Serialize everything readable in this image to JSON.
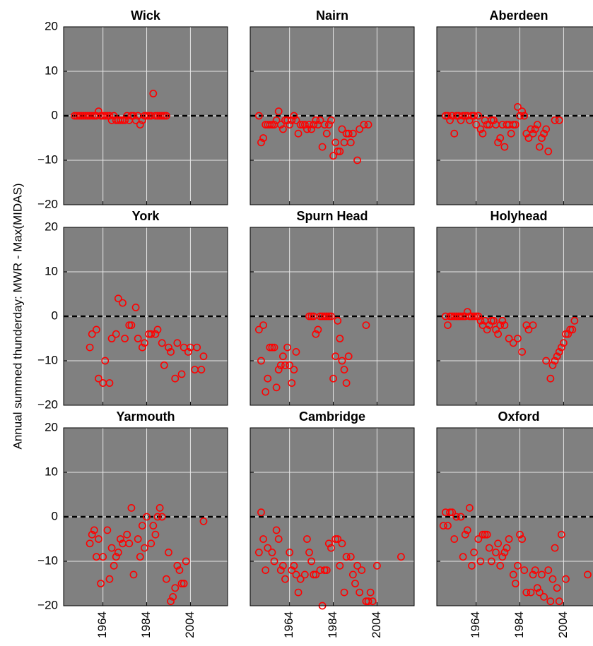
{
  "ylabel": "Annual summed thunderday: MWR - Max(MIDAS)",
  "chart_data": [
    {
      "type": "scatter",
      "title": "Wick",
      "color": "#ff0000",
      "background": "#808080",
      "grid": true,
      "hline": 0,
      "xlim": [
        1946,
        2021
      ],
      "ylim": [
        -20,
        20
      ],
      "xticks": [
        1964,
        1984,
        2004
      ],
      "yticks": [
        {
          "value": -20,
          "label": "−20"
        },
        {
          "value": -10,
          "label": "−10"
        },
        0,
        10,
        20
      ],
      "x": [
        1951,
        1952,
        1953,
        1954,
        1955,
        1956,
        1957,
        1958,
        1959,
        1960,
        1961,
        1962,
        1963,
        1964,
        1965,
        1966,
        1967,
        1968,
        1969,
        1970,
        1971,
        1972,
        1973,
        1974,
        1975,
        1976,
        1977,
        1978,
        1979,
        1980,
        1981,
        1982,
        1983,
        1984,
        1985,
        1986,
        1987,
        1988,
        1989,
        1990,
        1991,
        1992,
        1993
      ],
      "values": [
        0,
        0,
        0,
        0,
        0,
        0,
        0,
        0,
        0,
        0,
        0,
        1,
        0,
        0,
        0,
        0,
        0,
        -1,
        0,
        -1,
        -1,
        -1,
        -1,
        -1,
        0,
        -1,
        0,
        0,
        -1,
        0,
        -2,
        -1,
        0,
        0,
        0,
        0,
        5,
        0,
        0,
        0,
        0,
        0,
        0
      ]
    },
    {
      "type": "scatter",
      "title": "Nairn",
      "color": "#ff0000",
      "background": "#808080",
      "grid": true,
      "hline": 0,
      "xlim": [
        1946,
        2021
      ],
      "ylim": [
        -20,
        20
      ],
      "xticks": [
        1964,
        1984,
        2004
      ],
      "yticks": [
        {
          "value": -20,
          "label": "−20"
        },
        {
          "value": -10,
          "label": "−10"
        },
        0,
        10,
        20
      ],
      "x": [
        1950,
        1951,
        1952,
        1953,
        1954,
        1955,
        1956,
        1957,
        1958,
        1959,
        1960,
        1961,
        1962,
        1963,
        1964,
        1965,
        1966,
        1967,
        1968,
        1969,
        1970,
        1971,
        1972,
        1973,
        1974,
        1975,
        1976,
        1977,
        1978,
        1979,
        1980,
        1981,
        1982,
        1983,
        1984,
        1985,
        1986,
        1987,
        1988,
        1989,
        1990,
        1991,
        1992,
        1993,
        1995,
        1996,
        1998,
        2000
      ],
      "values": [
        0,
        -6,
        -5,
        -2,
        -2,
        -2,
        -2,
        -2,
        -1,
        1,
        -2,
        -3,
        -1,
        -1,
        -2,
        -1,
        0,
        -1,
        -4,
        -2,
        -2,
        -2,
        -3,
        -2,
        -3,
        -2,
        -1,
        -2,
        -1,
        -7,
        -2,
        -4,
        -2,
        -1,
        -9,
        -6,
        -8,
        -8,
        -3,
        -6,
        -4,
        -4,
        -6,
        -4,
        -10,
        -3,
        -2,
        -2
      ]
    },
    {
      "type": "scatter",
      "title": "Aberdeen",
      "color": "#ff0000",
      "background": "#808080",
      "grid": true,
      "hline": 0,
      "xlim": [
        1946,
        2021
      ],
      "ylim": [
        -20,
        20
      ],
      "xticks": [
        1964,
        1984,
        2004
      ],
      "yticks": [
        {
          "value": -20,
          "label": "−20"
        },
        {
          "value": -10,
          "label": "−10"
        },
        0,
        10,
        20
      ],
      "x": [
        1950,
        1951,
        1952,
        1953,
        1954,
        1955,
        1956,
        1957,
        1958,
        1959,
        1960,
        1961,
        1962,
        1963,
        1964,
        1965,
        1966,
        1967,
        1968,
        1969,
        1970,
        1971,
        1972,
        1973,
        1974,
        1975,
        1976,
        1977,
        1978,
        1979,
        1980,
        1981,
        1982,
        1983,
        1984,
        1985,
        1986,
        1987,
        1988,
        1989,
        1990,
        1991,
        1992,
        1993,
        1994,
        1995,
        1996,
        1997,
        2000,
        2002
      ],
      "values": [
        0,
        0,
        -1,
        0,
        -4,
        0,
        0,
        -1,
        0,
        0,
        0,
        -1,
        0,
        0,
        -2,
        0,
        -3,
        -4,
        -1,
        -2,
        -2,
        -1,
        -1,
        -2,
        -6,
        -5,
        -2,
        -7,
        -2,
        -2,
        -4,
        -2,
        -2,
        2,
        0,
        1,
        0,
        -4,
        -5,
        -3,
        -4,
        -3,
        -2,
        -7,
        -5,
        -4,
        -3,
        -8,
        -1,
        -1
      ]
    },
    {
      "type": "scatter",
      "title": "York",
      "color": "#ff0000",
      "background": "#808080",
      "grid": true,
      "hline": 0,
      "xlim": [
        1946,
        2021
      ],
      "ylim": [
        -20,
        20
      ],
      "xticks": [
        1964,
        1984,
        2004
      ],
      "yticks": [
        {
          "value": -20,
          "label": "−20"
        },
        {
          "value": -10,
          "label": "−10"
        },
        0,
        10,
        20
      ],
      "x": [
        1958,
        1959,
        1961,
        1962,
        1964,
        1965,
        1967,
        1968,
        1970,
        1971,
        1973,
        1974,
        1976,
        1977,
        1979,
        1980,
        1982,
        1983,
        1985,
        1986,
        1988,
        1989,
        1991,
        1992,
        1994,
        1995,
        1997,
        1998,
        2000,
        2001,
        2003,
        2004,
        2006,
        2007,
        2009,
        2010
      ],
      "values": [
        -7,
        -4,
        -3,
        -14,
        -15,
        -10,
        -15,
        -5,
        -4,
        4,
        3,
        -5,
        -2,
        -2,
        2,
        -5,
        -7,
        -6,
        -4,
        -4,
        -4,
        -3,
        -6,
        -11,
        -7,
        -8,
        -14,
        -6,
        -13,
        -7,
        -8,
        -7,
        -12,
        -7,
        -12,
        -9
      ]
    },
    {
      "type": "scatter",
      "title": "Spurn Head",
      "color": "#ff0000",
      "background": "#808080",
      "grid": true,
      "hline": 0,
      "xlim": [
        1946,
        2021
      ],
      "ylim": [
        -20,
        20
      ],
      "xticks": [
        1964,
        1984,
        2004
      ],
      "yticks": [
        {
          "value": -20,
          "label": "−20"
        },
        {
          "value": -10,
          "label": "−10"
        },
        0,
        10,
        20
      ],
      "x": [
        1950,
        1951,
        1952,
        1953,
        1954,
        1955,
        1956,
        1957,
        1958,
        1959,
        1960,
        1961,
        1962,
        1963,
        1964,
        1965,
        1966,
        1967,
        1973,
        1974,
        1975,
        1976,
        1977,
        1978,
        1979,
        1980,
        1981,
        1982,
        1983,
        1984,
        1985,
        1986,
        1987,
        1988,
        1989,
        1990,
        1991,
        1999
      ],
      "values": [
        -3,
        -10,
        -2,
        -17,
        -14,
        -7,
        -7,
        -7,
        -16,
        -12,
        -11,
        -9,
        -11,
        -7,
        -11,
        -15,
        -12,
        -8,
        0,
        0,
        0,
        -4,
        -3,
        0,
        0,
        0,
        0,
        0,
        0,
        -14,
        -9,
        -1,
        -5,
        -10,
        -12,
        -15,
        -9,
        -2
      ]
    },
    {
      "type": "scatter",
      "title": "Holyhead",
      "color": "#ff0000",
      "background": "#808080",
      "grid": true,
      "hline": 0,
      "xlim": [
        1946,
        2021
      ],
      "ylim": [
        -20,
        20
      ],
      "xticks": [
        1964,
        1984,
        2004
      ],
      "yticks": [
        {
          "value": -20,
          "label": "−20"
        },
        {
          "value": -10,
          "label": "−10"
        },
        0,
        10,
        20
      ],
      "x": [
        1950,
        1951,
        1952,
        1953,
        1954,
        1955,
        1956,
        1957,
        1958,
        1959,
        1960,
        1961,
        1962,
        1963,
        1964,
        1965,
        1966,
        1967,
        1968,
        1969,
        1970,
        1971,
        1972,
        1973,
        1974,
        1975,
        1976,
        1977,
        1979,
        1981,
        1983,
        1985,
        1987,
        1988,
        1990,
        1996,
        1998,
        1999,
        2000,
        2001,
        2002,
        2003,
        2004,
        2005,
        2006,
        2007,
        2008,
        2009
      ],
      "values": [
        0,
        -2,
        0,
        0,
        0,
        0,
        0,
        0,
        0,
        0,
        1,
        0,
        0,
        0,
        0,
        0,
        -1,
        -2,
        -1,
        -3,
        -2,
        -1,
        -1,
        -3,
        -4,
        -2,
        -1,
        -2,
        -5,
        -6,
        -5,
        -8,
        -2,
        -3,
        -2,
        -10,
        -14,
        -11,
        -10,
        -9,
        -8,
        -7,
        -6,
        -4,
        -4,
        -3,
        -3,
        -1
      ]
    },
    {
      "type": "scatter",
      "title": "Yarmouth",
      "color": "#ff0000",
      "background": "#808080",
      "grid": true,
      "hline": 0,
      "xlim": [
        1946,
        2021
      ],
      "ylim": [
        -20,
        20
      ],
      "xticks": [
        1964,
        1984,
        2004
      ],
      "yticks": [
        {
          "value": -20,
          "label": "−20"
        },
        {
          "value": -10,
          "label": "−10"
        },
        0,
        10,
        20
      ],
      "x": [
        1958,
        1959,
        1960,
        1961,
        1962,
        1963,
        1964,
        1966,
        1967,
        1968,
        1969,
        1970,
        1971,
        1972,
        1973,
        1975,
        1976,
        1977,
        1978,
        1980,
        1981,
        1982,
        1983,
        1984,
        1986,
        1987,
        1988,
        1989,
        1990,
        1991,
        1993,
        1994,
        1995,
        1996,
        1997,
        1998,
        1999,
        2000,
        2001,
        2002,
        2010
      ],
      "values": [
        -6,
        -4,
        -3,
        -9,
        -5,
        -15,
        -9,
        -3,
        -14,
        -7,
        -11,
        -9,
        -8,
        -5,
        -6,
        -4,
        -6,
        2,
        -13,
        -5,
        -9,
        -2,
        -7,
        0,
        -6,
        -2,
        -4,
        0,
        2,
        0,
        -14,
        -8,
        -19,
        -18,
        -16,
        -11,
        -12,
        -15,
        -15,
        -10,
        -1
      ]
    },
    {
      "type": "scatter",
      "title": "Cambridge",
      "color": "#ff0000",
      "background": "#808080",
      "grid": true,
      "hline": 0,
      "xlim": [
        1946,
        2021
      ],
      "ylim": [
        -20,
        20
      ],
      "xticks": [
        1964,
        1984,
        2004
      ],
      "yticks": [
        {
          "value": -20,
          "label": "−20"
        },
        {
          "value": -10,
          "label": "−10"
        },
        0,
        10,
        20
      ],
      "x": [
        1950,
        1951,
        1952,
        1953,
        1954,
        1956,
        1957,
        1958,
        1959,
        1960,
        1961,
        1962,
        1964,
        1965,
        1966,
        1967,
        1968,
        1969,
        1971,
        1972,
        1973,
        1974,
        1975,
        1976,
        1978,
        1979,
        1980,
        1981,
        1982,
        1983,
        1985,
        1986,
        1987,
        1988,
        1989,
        1990,
        1992,
        1993,
        1994,
        1995,
        1996,
        1997,
        1999,
        2000,
        2001,
        2002,
        2004,
        2015
      ],
      "values": [
        -8,
        1,
        -5,
        -12,
        -7,
        -8,
        -10,
        -3,
        -5,
        -12,
        -11,
        -14,
        -8,
        -12,
        -11,
        -13,
        -17,
        -14,
        -13,
        -5,
        -8,
        -10,
        -13,
        -13,
        -12,
        -20,
        -12,
        -12,
        -6,
        -7,
        -5,
        -5,
        -11,
        -6,
        -17,
        -9,
        -9,
        -13,
        -15,
        -11,
        -17,
        -12,
        -19,
        -19,
        -17,
        -19,
        -11,
        -9
      ]
    },
    {
      "type": "scatter",
      "title": "Oxford",
      "color": "#ff0000",
      "background": "#808080",
      "grid": true,
      "hline": 0,
      "xlim": [
        1946,
        2021
      ],
      "ylim": [
        -20,
        20
      ],
      "xticks": [
        1964,
        1984,
        2004
      ],
      "yticks": [
        {
          "value": -20,
          "label": "−20"
        },
        {
          "value": -10,
          "label": "−10"
        },
        0,
        10,
        20
      ],
      "x": [
        1949,
        1950,
        1951,
        1952,
        1953,
        1954,
        1955,
        1957,
        1958,
        1959,
        1960,
        1961,
        1962,
        1963,
        1965,
        1966,
        1967,
        1968,
        1969,
        1970,
        1971,
        1973,
        1974,
        1975,
        1976,
        1977,
        1978,
        1979,
        1981,
        1982,
        1983,
        1984,
        1985,
        1986,
        1987,
        1989,
        1990,
        1991,
        1992,
        1993,
        1994,
        1995,
        1997,
        1998,
        1999,
        2000,
        2001,
        2002,
        2003,
        2005,
        2015
      ],
      "values": [
        -2,
        1,
        -2,
        1,
        1,
        -5,
        0,
        0,
        -9,
        -4,
        -3,
        2,
        -11,
        -8,
        -5,
        -10,
        -4,
        -4,
        -4,
        -7,
        -10,
        -8,
        -6,
        -11,
        -9,
        -8,
        -7,
        -5,
        -13,
        -15,
        -11,
        -4,
        -5,
        -12,
        -17,
        -17,
        -13,
        -12,
        -16,
        -17,
        -13,
        -18,
        -12,
        -19,
        -14,
        -7,
        -16,
        -19,
        -4,
        -14,
        -13
      ]
    }
  ]
}
